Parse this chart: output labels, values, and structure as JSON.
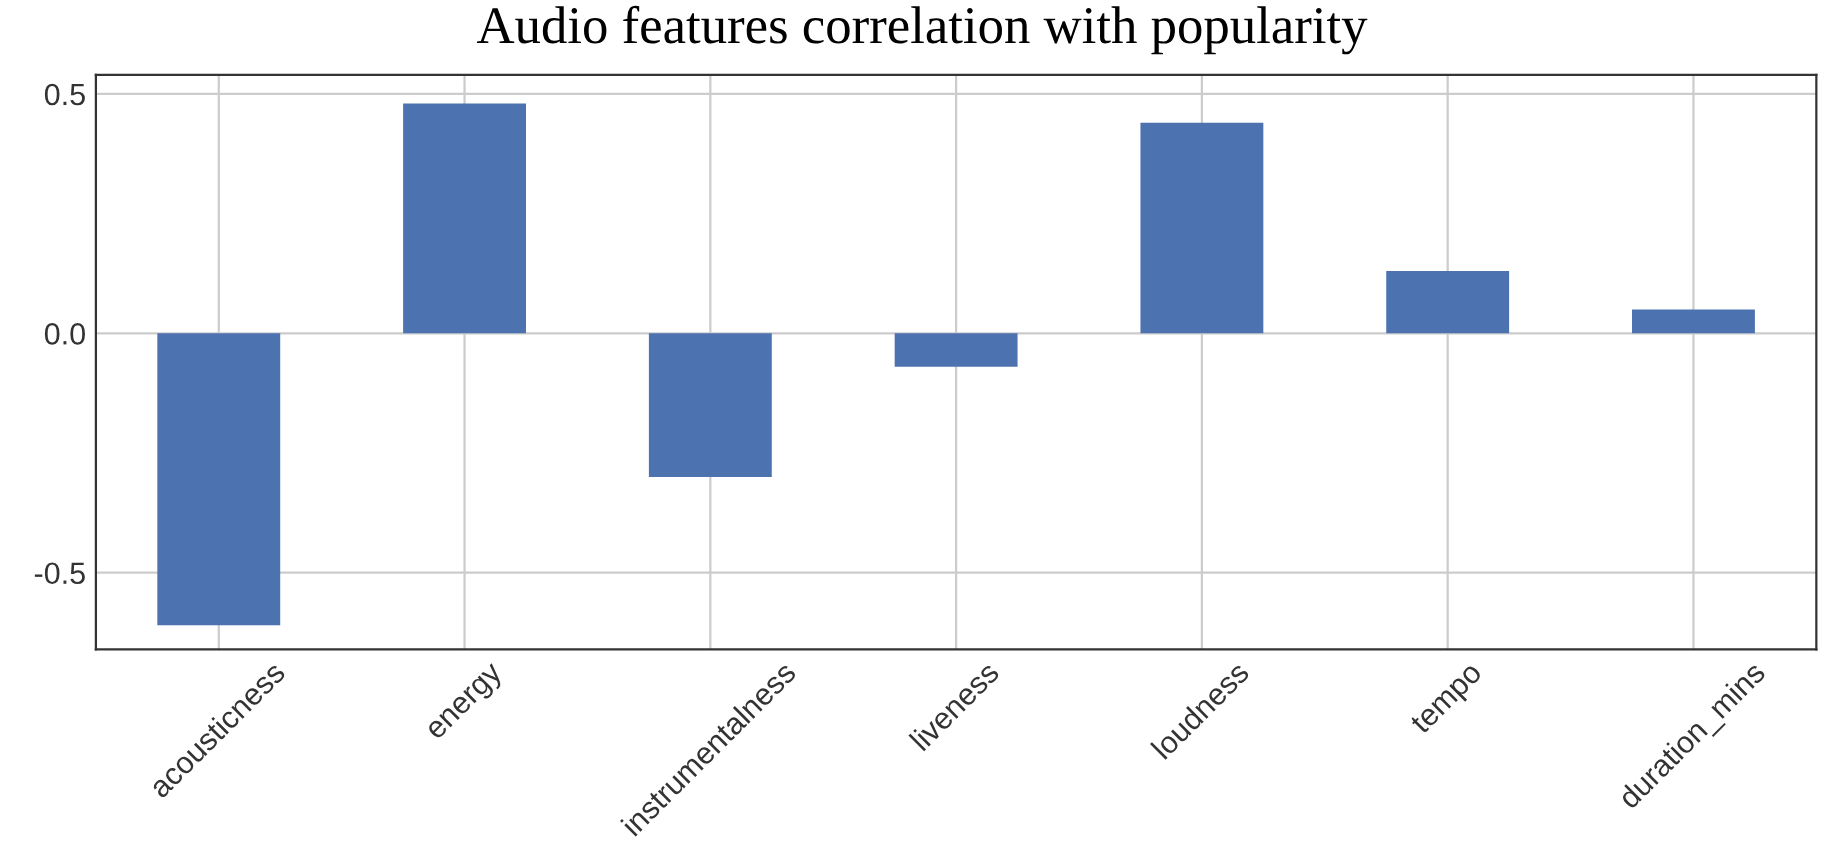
{
  "chart_data": {
    "type": "bar",
    "title": "Audio features correlation with popularity",
    "categories": [
      "acousticness",
      "energy",
      "instrumentalness",
      "liveness",
      "loudness",
      "tempo",
      "duration_mins"
    ],
    "values": [
      -0.61,
      0.48,
      -0.3,
      -0.07,
      0.44,
      0.13,
      0.05
    ],
    "color": "#4c72b0",
    "ylim": [
      -0.66,
      0.54
    ],
    "yticks": [
      {
        "value": -0.5,
        "label": "-0.5"
      },
      {
        "value": 0,
        "label": "0.0"
      },
      0.5
    ],
    "grid": true
  }
}
